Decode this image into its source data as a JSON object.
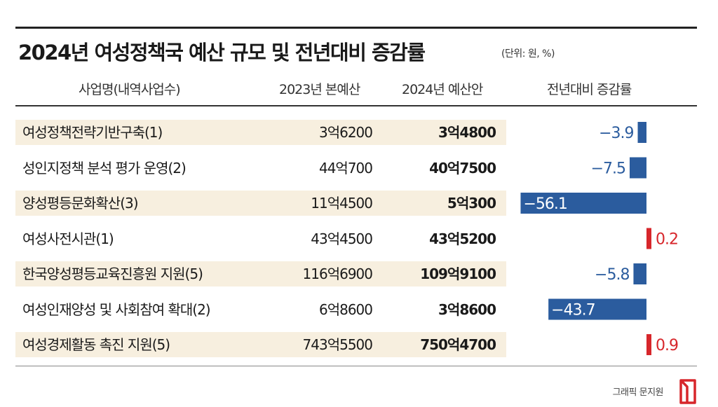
{
  "title": "2024년 여성정책국 예산 규모 및 전년대비 증감률",
  "unit": "(단위: 원, %)",
  "headers": {
    "name": "사업명(내역사업수)",
    "budget_2023": "2023년 본예산",
    "budget_2024": "2024년 예산안",
    "change": "전년대비 증감률"
  },
  "rows": [
    {
      "name": "여성정책전략기반구축(1)",
      "budget_2023": "3억6200",
      "budget_2024": "3억4800",
      "change_label": "−3.9"
    },
    {
      "name": "성인지정책 분석 평가 운영(2)",
      "budget_2023": "44억700",
      "budget_2024": "40억7500",
      "change_label": "−7.5"
    },
    {
      "name": "양성평등문화확산(3)",
      "budget_2023": "11억4500",
      "budget_2024": "5억300",
      "change_label": "−56.1"
    },
    {
      "name": "여성사전시관(1)",
      "budget_2023": "43억4500",
      "budget_2024": "43억5200",
      "change_label": "0.2"
    },
    {
      "name": "한국양성평등교육진흥원 지원(5)",
      "budget_2023": "116억6900",
      "budget_2024": "109억9100",
      "change_label": "−5.8"
    },
    {
      "name": "여성인재양성 및 사회참여 확대(2)",
      "budget_2023": "6억8600",
      "budget_2024": "3억8600",
      "change_label": "−43.7"
    },
    {
      "name": "여성경제활동 촉진 지원(5)",
      "budget_2023": "743억5500",
      "budget_2024": "750억4700",
      "change_label": "0.9"
    }
  ],
  "chart_data": {
    "type": "bar",
    "orientation": "horizontal",
    "categories": [
      "여성정책전략기반구축(1)",
      "성인지정책 분석 평가 운영(2)",
      "양성평등문화확산(3)",
      "여성사전시관(1)",
      "한국양성평등교육진흥원 지원(5)",
      "여성인재양성 및 사회참여 확대(2)",
      "여성경제활동 촉진 지원(5)"
    ],
    "values": [
      -3.9,
      -7.5,
      -56.1,
      0.2,
      -5.8,
      -43.7,
      0.9
    ],
    "colors": {
      "negative": "#2b5c9e",
      "positive": "#d7262b"
    }
  },
  "credit": "그래픽 문지원"
}
